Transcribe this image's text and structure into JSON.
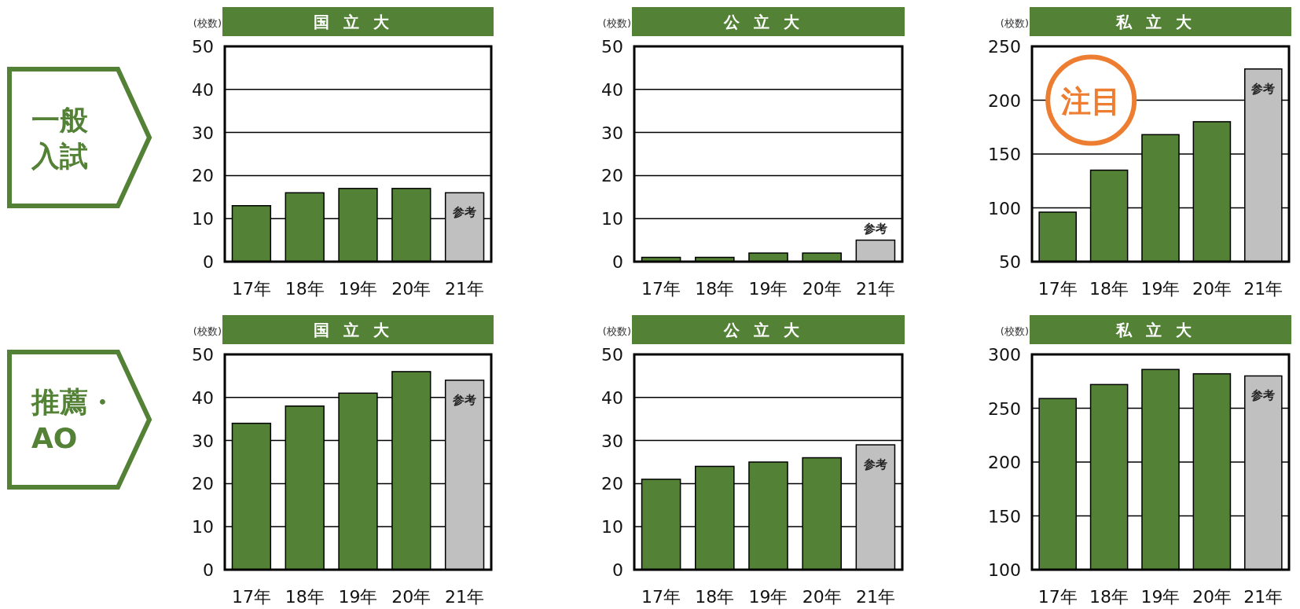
{
  "chart_data": [
    {
      "type": "bar",
      "title": "国立大",
      "ylabel": "(校数)",
      "categories": [
        "17年",
        "18年",
        "19年",
        "20年",
        "21年"
      ],
      "values": [
        13,
        16,
        17,
        17,
        16
      ],
      "colors": [
        "#538135",
        "#538135",
        "#538135",
        "#538135",
        "#c0c0c0"
      ],
      "ylim": [
        0,
        50
      ],
      "yticks": [
        0,
        10,
        20,
        30,
        40,
        50
      ],
      "grid": "y",
      "annotations": [
        "一般",
        "入試",
        {
          "text": "参考",
          "x": "21年",
          "y": 16
        }
      ]
    },
    {
      "type": "bar",
      "title": "公立大",
      "ylabel": "(校数)",
      "categories": [
        "17年",
        "18年",
        "19年",
        "20年",
        "21年"
      ],
      "values": [
        1,
        1,
        2,
        2,
        5
      ],
      "colors": [
        "#538135",
        "#538135",
        "#538135",
        "#538135",
        "#c0c0c0"
      ],
      "ylim": [
        0,
        50
      ],
      "yticks": [
        0,
        10,
        20,
        30,
        40,
        50
      ],
      "grid": "y",
      "annotations": [
        {
          "text": "参考",
          "x": "21年",
          "y": 5
        }
      ]
    },
    {
      "type": "bar",
      "title": "私立大",
      "ylabel": "(校数)",
      "categories": [
        "17年",
        "18年",
        "19年",
        "20年",
        "21年"
      ],
      "values": [
        96,
        135,
        168,
        180,
        229
      ],
      "colors": [
        "#538135",
        "#538135",
        "#538135",
        "#538135",
        "#c0c0c0"
      ],
      "ylim": [
        50,
        250
      ],
      "yticks": [
        50,
        100,
        150,
        200,
        250
      ],
      "grid": "y",
      "annotations": [
        "注目",
        {
          "text": "参考",
          "x": "21年",
          "y": 229
        }
      ]
    },
    {
      "type": "bar",
      "title": "国立大",
      "ylabel": "(校数)",
      "categories": [
        "17年",
        "18年",
        "19年",
        "20年",
        "21年"
      ],
      "values": [
        34,
        38,
        41,
        46,
        44
      ],
      "colors": [
        "#538135",
        "#538135",
        "#538135",
        "#538135",
        "#c0c0c0"
      ],
      "ylim": [
        0,
        50
      ],
      "yticks": [
        0,
        10,
        20,
        30,
        40,
        50
      ],
      "grid": "y",
      "annotations": [
        "推薦・",
        "AO",
        {
          "text": "参考",
          "x": "21年",
          "y": 44
        }
      ]
    },
    {
      "type": "bar",
      "title": "公立大",
      "ylabel": "(校数)",
      "categories": [
        "17年",
        "18年",
        "19年",
        "20年",
        "21年"
      ],
      "values": [
        21,
        24,
        25,
        26,
        29
      ],
      "colors": [
        "#538135",
        "#538135",
        "#538135",
        "#538135",
        "#c0c0c0"
      ],
      "ylim": [
        0,
        50
      ],
      "yticks": [
        0,
        10,
        20,
        30,
        40,
        50
      ],
      "grid": "y",
      "annotations": [
        {
          "text": "参考",
          "x": "21年",
          "y": 29
        }
      ]
    },
    {
      "type": "bar",
      "title": "私立大",
      "ylabel": "(校数)",
      "categories": [
        "17年",
        "18年",
        "19年",
        "20年",
        "21年"
      ],
      "values": [
        259,
        272,
        286,
        282,
        280
      ],
      "colors": [
        "#538135",
        "#538135",
        "#538135",
        "#538135",
        "#c0c0c0"
      ],
      "ylim": [
        100,
        300
      ],
      "yticks": [
        100,
        150,
        200,
        250,
        300
      ],
      "grid": "y",
      "annotations": [
        {
          "text": "参考",
          "x": "21年",
          "y": 280
        }
      ]
    }
  ]
}
